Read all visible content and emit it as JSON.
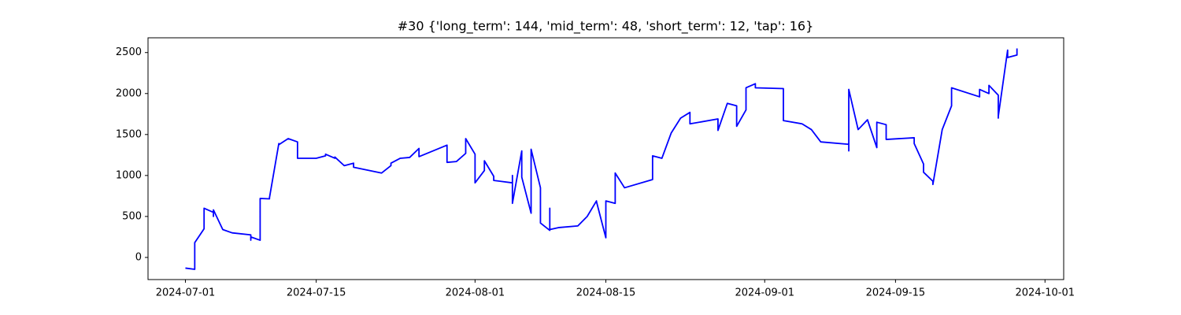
{
  "chart_data": {
    "type": "line",
    "title": "#30 {'long_term': 144, 'mid_term': 48, 'short_term': 12, 'tap': 16}",
    "color": "#0000ff",
    "x": [
      "2024-07-01",
      "2024-07-02",
      "2024-07-02",
      "2024-07-02",
      "2024-07-03",
      "2024-07-03",
      "2024-07-04",
      "2024-07-04",
      "2024-07-04",
      "2024-07-05",
      "2024-07-06",
      "2024-07-08",
      "2024-07-08",
      "2024-07-08",
      "2024-07-09",
      "2024-07-09",
      "2024-07-10",
      "2024-07-10",
      "2024-07-11",
      "2024-07-11",
      "2024-07-12",
      "2024-07-13",
      "2024-07-13",
      "2024-07-15",
      "2024-07-16",
      "2024-07-16",
      "2024-07-17",
      "2024-07-17",
      "2024-07-18",
      "2024-07-19",
      "2024-07-19",
      "2024-07-22",
      "2024-07-23",
      "2024-07-23",
      "2024-07-24",
      "2024-07-25",
      "2024-07-26",
      "2024-07-26",
      "2024-07-26",
      "2024-07-29",
      "2024-07-29",
      "2024-07-30",
      "2024-07-31",
      "2024-07-31",
      "2024-08-01",
      "2024-08-01",
      "2024-08-02",
      "2024-08-02",
      "2024-08-03",
      "2024-08-03",
      "2024-08-05",
      "2024-08-05",
      "2024-08-05",
      "2024-08-06",
      "2024-08-06",
      "2024-08-07",
      "2024-08-07",
      "2024-08-08",
      "2024-08-08",
      "2024-08-09",
      "2024-08-09",
      "2024-08-09",
      "2024-08-10",
      "2024-08-12",
      "2024-08-13",
      "2024-08-14",
      "2024-08-14",
      "2024-08-15",
      "2024-08-15",
      "2024-08-15",
      "2024-08-16",
      "2024-08-16",
      "2024-08-17",
      "2024-08-20",
      "2024-08-20",
      "2024-08-21",
      "2024-08-22",
      "2024-08-23",
      "2024-08-24",
      "2024-08-24",
      "2024-08-27",
      "2024-08-27",
      "2024-08-28",
      "2024-08-29",
      "2024-08-29",
      "2024-08-30",
      "2024-08-30",
      "2024-08-31",
      "2024-08-31",
      "2024-09-03",
      "2024-09-03",
      "2024-09-05",
      "2024-09-06",
      "2024-09-07",
      "2024-09-10",
      "2024-09-10",
      "2024-09-10",
      "2024-09-10",
      "2024-09-11",
      "2024-09-12",
      "2024-09-12",
      "2024-09-13",
      "2024-09-13",
      "2024-09-14",
      "2024-09-14",
      "2024-09-14",
      "2024-09-17",
      "2024-09-17",
      "2024-09-18",
      "2024-09-18",
      "2024-09-19",
      "2024-09-19",
      "2024-09-20",
      "2024-09-21",
      "2024-09-21",
      "2024-09-24",
      "2024-09-24",
      "2024-09-25",
      "2024-09-25",
      "2024-09-26",
      "2024-09-26",
      "2024-09-26",
      "2024-09-27",
      "2024-09-27",
      "2024-09-28",
      "2024-09-28"
    ],
    "values": [
      -130,
      -145,
      30,
      180,
      350,
      600,
      550,
      500,
      580,
      340,
      300,
      275,
      210,
      250,
      210,
      720,
      715,
      730,
      1390,
      1375,
      1450,
      1410,
      1210,
      1210,
      1240,
      1260,
      1210,
      1225,
      1120,
      1150,
      1100,
      1030,
      1120,
      1150,
      1210,
      1220,
      1330,
      1270,
      1230,
      1370,
      1160,
      1170,
      1270,
      1450,
      1260,
      910,
      1060,
      1180,
      990,
      940,
      910,
      1000,
      660,
      1300,
      980,
      540,
      1320,
      850,
      420,
      330,
      600,
      340,
      365,
      385,
      500,
      690,
      680,
      240,
      280,
      690,
      660,
      1030,
      850,
      950,
      1240,
      1210,
      1520,
      1700,
      1770,
      1630,
      1690,
      1550,
      1880,
      1850,
      1600,
      1800,
      2070,
      2120,
      2070,
      2060,
      1670,
      1630,
      1560,
      1410,
      1380,
      1300,
      2000,
      2050,
      1560,
      1680,
      1680,
      1340,
      1650,
      1620,
      1440,
      1440,
      1460,
      1390,
      1140,
      1040,
      930,
      890,
      1560,
      1850,
      2070,
      1960,
      2050,
      2000,
      2100,
      1980,
      1700,
      1720,
      2530,
      2440,
      2470,
      2550
    ],
    "xlim": [
      "2024-06-27",
      "2024-10-03"
    ],
    "xticks": [
      "2024-07-01",
      "2024-07-15",
      "2024-08-01",
      "2024-08-15",
      "2024-09-01",
      "2024-09-15",
      "2024-10-01"
    ],
    "ylim": [
      -270,
      2680
    ],
    "yticks": [
      0,
      500,
      1000,
      1500,
      2000,
      2500
    ]
  }
}
